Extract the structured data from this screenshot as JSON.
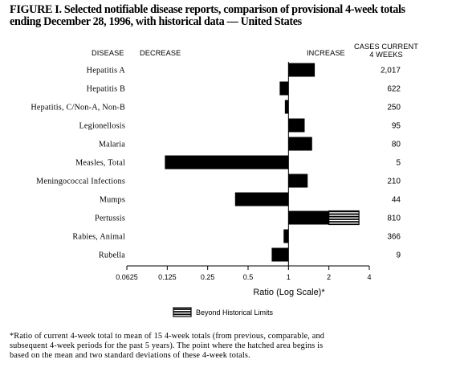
{
  "title": "FIGURE I. Selected notifiable disease reports, comparison of provisional 4-week totals\nending December 28, 1996, with historical data — United States",
  "headers": {
    "disease": "DISEASE",
    "decrease": "DECREASE",
    "increase": "INCREASE",
    "cases": "CASES CURRENT\n4 WEEKS"
  },
  "legend": {
    "label": "Beyond Historical Limits"
  },
  "footnote": "*Ratio of current 4-week total to mean of 15 4-week totals (from previous, comparable, and\nsubsequent 4-week periods for the past 5 years). The point where the hatched area begins is\nbased on the mean and two standard deviations of these 4-week totals.",
  "colors": {
    "bar": "#000000",
    "background": "#ffffff"
  },
  "chart_data": {
    "type": "bar",
    "orientation": "horizontal",
    "xscale": "log2",
    "xlabel": "Ratio (Log Scale)*",
    "xlim": [
      0.0625,
      4
    ],
    "xticks": [
      "0.0625",
      "0.125",
      "0.25",
      "0.5",
      "1",
      "2",
      "4"
    ],
    "xtick_values": [
      0.0625,
      0.125,
      0.25,
      0.5,
      1,
      2,
      4
    ],
    "categories": [
      "Hepatitis A",
      "Hepatitis B",
      "Hepatitis, C/Non-A, Non-B",
      "Legionellosis",
      "Malaria",
      "Measles, Total",
      "Meningococcal Infections",
      "Mumps",
      "Pertussis",
      "Rabies, Animal",
      "Rubella"
    ],
    "values": [
      1.57,
      0.86,
      0.94,
      1.32,
      1.5,
      0.12,
      1.39,
      0.4,
      3.35,
      0.92,
      0.75
    ],
    "beyond_historical_limits_start": [
      null,
      null,
      null,
      null,
      null,
      null,
      null,
      null,
      2.0,
      null,
      null
    ],
    "cases_current_4_weeks": [
      "2,017",
      "622",
      "250",
      "95",
      "80",
      "5",
      "210",
      "44",
      "810",
      "366",
      "9"
    ]
  }
}
